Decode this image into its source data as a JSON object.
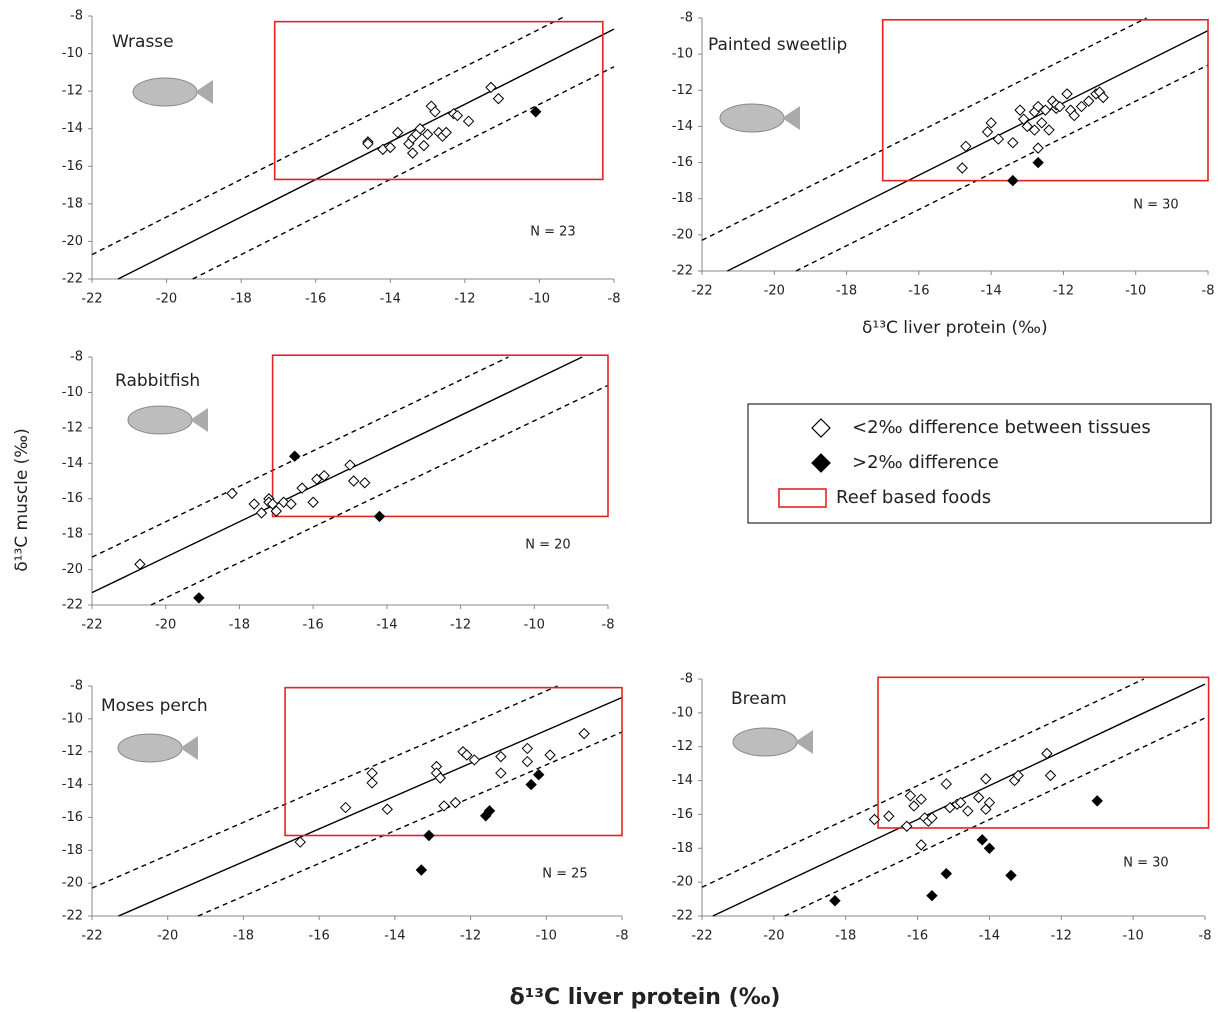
{
  "chart_data": [
    {
      "type": "scatter",
      "title": "Wrasse",
      "n_label": "N = 23",
      "xlim": [
        -22,
        -8
      ],
      "xticks": [
        -22,
        -20,
        -18,
        -16,
        -14,
        -12,
        -10,
        -8
      ],
      "ylim": [
        -22,
        -8
      ],
      "yticks": [
        -22,
        -20,
        -18,
        -16,
        -14,
        -12,
        -10,
        -8
      ],
      "series": [
        {
          "marker": "open",
          "color": "#000000",
          "x": [
            -14.6,
            -14.6,
            -14.2,
            -14.0,
            -13.8,
            -13.5,
            -13.4,
            -13.4,
            -13.3,
            -13.2,
            -13.1,
            -13.0,
            -12.9,
            -12.8,
            -12.7,
            -12.6,
            -12.5,
            -12.3,
            -12.2,
            -11.9,
            -11.3,
            -11.1
          ],
          "values": [
            -14.7,
            -14.8,
            -15.1,
            -15.0,
            -14.2,
            -14.8,
            -15.3,
            -14.5,
            -14.3,
            -14.0,
            -14.9,
            -14.3,
            -12.8,
            -13.1,
            -14.2,
            -14.4,
            -14.2,
            -13.2,
            -13.3,
            -13.6,
            -11.8,
            -12.4
          ]
        },
        {
          "marker": "filled",
          "color": "#000000",
          "x": [
            -10.1
          ],
          "values": [
            -13.1
          ]
        }
      ],
      "reference_lines": [
        {
          "intercept": 1.3,
          "dashed": true
        },
        {
          "intercept": -0.7,
          "dashed": false
        },
        {
          "intercept": -2.7,
          "dashed": true
        }
      ],
      "box": {
        "x": [
          -17.1,
          -8.3
        ],
        "y": [
          -16.7,
          -8.3
        ],
        "color": "#e32322"
      }
    },
    {
      "type": "scatter",
      "title": "Painted sweetlip",
      "n_label": "N = 30",
      "x_label": "δ¹³C  liver protein (‰)",
      "xlim": [
        -22,
        -8
      ],
      "xticks": [
        -22,
        -20,
        -18,
        -16,
        -14,
        -12,
        -10,
        -8
      ],
      "ylim": [
        -22,
        -8
      ],
      "yticks": [
        -22,
        -20,
        -18,
        -16,
        -14,
        -12,
        -10,
        -8
      ],
      "series": [
        {
          "marker": "open",
          "color": "#000000",
          "x": [
            -14.8,
            -14.7,
            -14.1,
            -14.0,
            -13.8,
            -13.4,
            -13.2,
            -13.1,
            -13.0,
            -12.8,
            -12.8,
            -12.7,
            -12.7,
            -12.6,
            -12.5,
            -12.4,
            -12.3,
            -12.2,
            -12.2,
            -12.1,
            -11.9,
            -11.8,
            -11.7,
            -11.5,
            -11.3,
            -11.1,
            -11.0,
            -10.9
          ],
          "values": [
            -16.3,
            -15.1,
            -14.3,
            -13.8,
            -14.7,
            -14.9,
            -13.1,
            -13.6,
            -14.0,
            -14.2,
            -13.2,
            -12.9,
            -15.2,
            -13.8,
            -13.1,
            -14.2,
            -12.6,
            -13.0,
            -12.8,
            -12.9,
            -12.2,
            -13.1,
            -13.4,
            -12.9,
            -12.6,
            -12.2,
            -12.1,
            -12.4
          ]
        },
        {
          "marker": "filled",
          "color": "#000000",
          "x": [
            -13.4,
            -12.7
          ],
          "values": [
            -17.0,
            -16.0
          ]
        }
      ],
      "reference_lines": [
        {
          "intercept": 1.7,
          "dashed": true
        },
        {
          "intercept": -0.7,
          "dashed": false
        },
        {
          "intercept": -2.6,
          "dashed": true
        }
      ],
      "box": {
        "x": [
          -17.0,
          -8.0
        ],
        "y": [
          -17.0,
          -8.1
        ],
        "color": "#e32322"
      }
    },
    {
      "type": "scatter",
      "title": "Rabbitfish",
      "n_label": "N = 20",
      "xlim": [
        -22,
        -8
      ],
      "xticks": [
        -22,
        -20,
        -18,
        -16,
        -14,
        -12,
        -10,
        -8
      ],
      "ylim": [
        -22,
        -8
      ],
      "yticks": [
        -22,
        -20,
        -18,
        -16,
        -14,
        -12,
        -10,
        -8
      ],
      "series": [
        {
          "marker": "open",
          "color": "#000000",
          "x": [
            -20.7,
            -18.2,
            -17.6,
            -17.4,
            -17.2,
            -17.2,
            -17.1,
            -17.0,
            -16.8,
            -16.6,
            -16.3,
            -16.0,
            -15.9,
            -15.7,
            -15.0,
            -14.9,
            -14.6
          ],
          "values": [
            -19.7,
            -15.7,
            -16.3,
            -16.8,
            -16.0,
            -16.2,
            -16.3,
            -16.7,
            -16.2,
            -16.3,
            -15.4,
            -16.2,
            -14.9,
            -14.7,
            -14.1,
            -15.0,
            -15.1
          ]
        },
        {
          "marker": "filled",
          "color": "#000000",
          "x": [
            -19.1,
            -16.5,
            -14.2
          ],
          "values": [
            -21.6,
            -13.6,
            -17.0
          ]
        }
      ],
      "reference_lines": [
        {
          "intercept": 2.7,
          "dashed": true
        },
        {
          "intercept": 0.7,
          "dashed": false
        },
        {
          "intercept": -1.6,
          "dashed": true
        }
      ],
      "box": {
        "x": [
          -17.1,
          -8.0
        ],
        "y": [
          -17.0,
          -7.9
        ],
        "color": "#e32322"
      }
    },
    {
      "type": "scatter",
      "title": "Moses perch",
      "n_label": "N = 25",
      "xlim": [
        -22,
        -8
      ],
      "xticks": [
        -22,
        -20,
        -18,
        -16,
        -14,
        -12,
        -10,
        -8
      ],
      "ylim": [
        -22,
        -8
      ],
      "yticks": [
        -22,
        -20,
        -18,
        -16,
        -14,
        -12,
        -10,
        -8
      ],
      "series": [
        {
          "marker": "open",
          "color": "#000000",
          "x": [
            -16.5,
            -15.3,
            -14.6,
            -14.6,
            -14.2,
            -12.9,
            -12.9,
            -12.8,
            -12.7,
            -12.4,
            -12.2,
            -12.1,
            -11.9,
            -11.2,
            -11.2,
            -10.5,
            -10.5,
            -9.9,
            -9.0
          ],
          "values": [
            -17.5,
            -15.4,
            -13.3,
            -13.9,
            -15.5,
            -12.9,
            -13.3,
            -13.6,
            -15.3,
            -15.1,
            -12.0,
            -12.2,
            -12.5,
            -12.3,
            -13.3,
            -11.8,
            -12.6,
            -12.2,
            -10.9
          ]
        },
        {
          "marker": "filled",
          "color": "#000000",
          "x": [
            -13.3,
            -13.1,
            -11.6,
            -11.5,
            -10.4,
            -10.2
          ],
          "values": [
            -19.2,
            -17.1,
            -15.9,
            -15.6,
            -14.0,
            -13.4
          ]
        }
      ],
      "reference_lines": [
        {
          "intercept": 1.7,
          "dashed": true
        },
        {
          "intercept": -0.7,
          "dashed": false
        },
        {
          "intercept": -2.8,
          "dashed": true
        }
      ],
      "box": {
        "x": [
          -16.9,
          -8.0
        ],
        "y": [
          -17.1,
          -8.1
        ],
        "color": "#e32322"
      }
    },
    {
      "type": "scatter",
      "title": "Bream",
      "n_label": "N = 30",
      "xlim": [
        -22,
        -8
      ],
      "xticks": [
        -22,
        -20,
        -18,
        -16,
        -14,
        -12,
        -10,
        -8
      ],
      "ylim": [
        -22,
        -8
      ],
      "yticks": [
        -22,
        -20,
        -18,
        -16,
        -14,
        -12,
        -10,
        -8
      ],
      "series": [
        {
          "marker": "open",
          "color": "#000000",
          "x": [
            -17.2,
            -16.8,
            -16.3,
            -16.2,
            -16.1,
            -15.9,
            -15.9,
            -15.8,
            -15.7,
            -15.6,
            -15.2,
            -15.1,
            -14.9,
            -14.8,
            -14.6,
            -14.3,
            -14.1,
            -14.1,
            -14.0,
            -13.3,
            -13.2,
            -12.4,
            -12.3
          ],
          "values": [
            -16.3,
            -16.1,
            -16.7,
            -14.9,
            -15.5,
            -15.1,
            -17.8,
            -16.2,
            -16.4,
            -16.2,
            -14.2,
            -15.6,
            -15.4,
            -15.3,
            -15.8,
            -15.0,
            -13.9,
            -15.7,
            -15.3,
            -14.0,
            -13.7,
            -12.4,
            -13.7
          ]
        },
        {
          "marker": "filled",
          "color": "#000000",
          "x": [
            -18.3,
            -15.6,
            -15.2,
            -14.2,
            -14.0,
            -13.4,
            -11.0
          ],
          "values": [
            -21.1,
            -20.8,
            -19.5,
            -17.5,
            -18.0,
            -19.6,
            -15.2
          ]
        }
      ],
      "reference_lines": [
        {
          "intercept": 1.7,
          "dashed": true
        },
        {
          "intercept": -0.3,
          "dashed": false
        },
        {
          "intercept": -2.3,
          "dashed": true
        }
      ],
      "box": {
        "x": [
          -17.1,
          -7.9
        ],
        "y": [
          -16.8,
          -7.9
        ],
        "color": "#e32322"
      }
    }
  ],
  "legend": {
    "items": [
      {
        "label": "<2‰ difference between tissues",
        "marker": "open"
      },
      {
        "label": ">2‰ difference",
        "marker": "filled"
      },
      {
        "label": "Reef based foods",
        "marker": "box",
        "color": "#e32322"
      }
    ]
  },
  "y_label": "δ¹³C muscle (‰)",
  "x_label": "δ¹³C liver protein (‰)"
}
